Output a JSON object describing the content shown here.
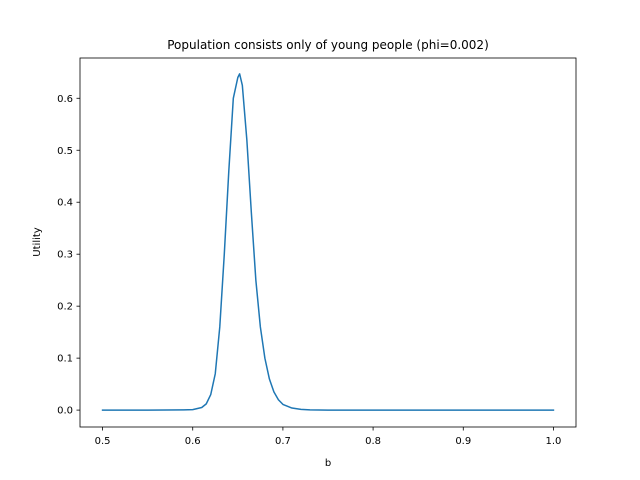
{
  "chart_data": {
    "type": "line",
    "title": "Population consists only of young people (phi=0.002)",
    "xlabel": "b",
    "ylabel": "Utility",
    "xlim": [
      0.475,
      1.025
    ],
    "ylim": [
      -0.0325,
      0.6775
    ],
    "xticks": [
      0.5,
      0.6,
      0.7,
      0.8,
      0.9,
      1.0
    ],
    "xtick_labels": [
      "0.5",
      "0.6",
      "0.7",
      "0.8",
      "0.9",
      "1.0"
    ],
    "yticks": [
      0.0,
      0.1,
      0.2,
      0.3,
      0.4,
      0.5,
      0.6
    ],
    "ytick_labels": [
      "0.0",
      "0.1",
      "0.2",
      "0.3",
      "0.4",
      "0.5",
      "0.6"
    ],
    "grid": false,
    "line_color": "#1f77b4",
    "series": [
      {
        "x": [
          0.5,
          0.55,
          0.59,
          0.6,
          0.61,
          0.615,
          0.62,
          0.625,
          0.63,
          0.635,
          0.64,
          0.645,
          0.65,
          0.652,
          0.655,
          0.66,
          0.665,
          0.67,
          0.675,
          0.68,
          0.685,
          0.69,
          0.695,
          0.7,
          0.71,
          0.72,
          0.73,
          0.75,
          0.8,
          0.9,
          1.0
        ],
        "y": [
          0.0,
          0.0,
          0.0005,
          0.001,
          0.005,
          0.012,
          0.03,
          0.07,
          0.16,
          0.3,
          0.46,
          0.6,
          0.64,
          0.647,
          0.625,
          0.52,
          0.38,
          0.25,
          0.16,
          0.1,
          0.06,
          0.035,
          0.02,
          0.011,
          0.004,
          0.0015,
          0.0005,
          0.0,
          0.0,
          0.0,
          0.0
        ]
      }
    ]
  }
}
